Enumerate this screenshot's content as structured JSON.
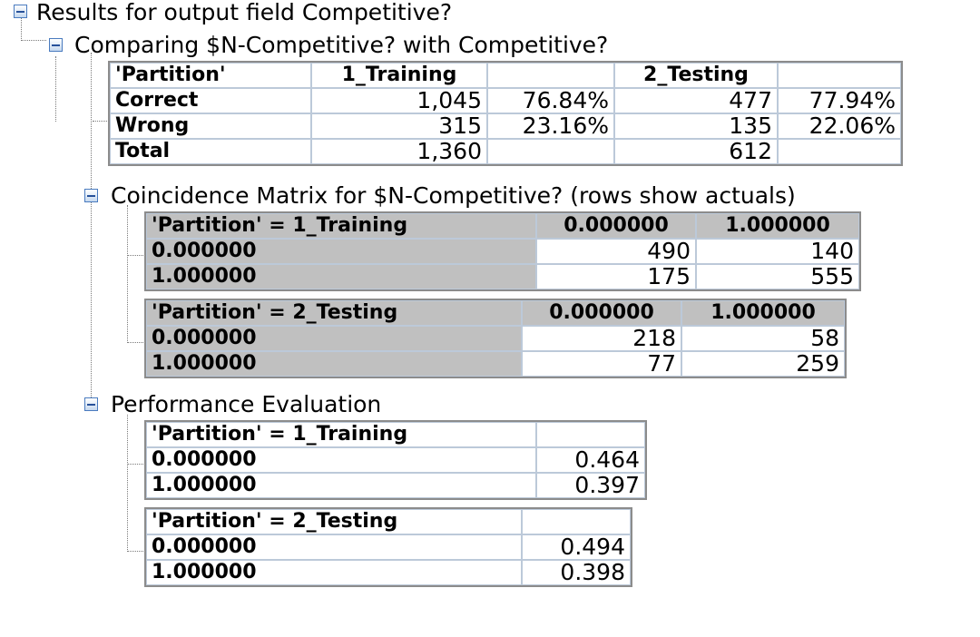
{
  "root": {
    "title": "Results for output field Competitive?"
  },
  "comparing": {
    "title": "Comparing $N-Competitive? with Competitive?",
    "header": [
      "'Partition'",
      "1_Training",
      "",
      "2_Testing",
      ""
    ],
    "rows": [
      [
        "Correct",
        "1,045",
        "76.84%",
        "477",
        "77.94%"
      ],
      [
        "Wrong",
        "315",
        "23.16%",
        "135",
        "22.06%"
      ],
      [
        "Total",
        "1,360",
        "",
        "612",
        ""
      ]
    ]
  },
  "coincidence": {
    "title": "Coincidence Matrix for $N-Competitive? (rows show actuals)",
    "tables": [
      {
        "header": [
          "'Partition' = 1_Training",
          "0.000000",
          "1.000000"
        ],
        "rows": [
          [
            "0.000000",
            "490",
            "140"
          ],
          [
            "1.000000",
            "175",
            "555"
          ]
        ]
      },
      {
        "header": [
          "'Partition' = 2_Testing",
          "0.000000",
          "1.000000"
        ],
        "rows": [
          [
            "0.000000",
            "218",
            "58"
          ],
          [
            "1.000000",
            "77",
            "259"
          ]
        ]
      }
    ]
  },
  "performance": {
    "title": "Performance Evaluation",
    "tables": [
      {
        "header": [
          "'Partition' = 1_Training",
          ""
        ],
        "rows": [
          [
            "0.000000",
            "0.464"
          ],
          [
            "1.000000",
            "0.397"
          ]
        ]
      },
      {
        "header": [
          "'Partition' = 2_Testing",
          ""
        ],
        "rows": [
          [
            "0.000000",
            "0.494"
          ],
          [
            "1.000000",
            "0.398"
          ]
        ]
      }
    ]
  }
}
